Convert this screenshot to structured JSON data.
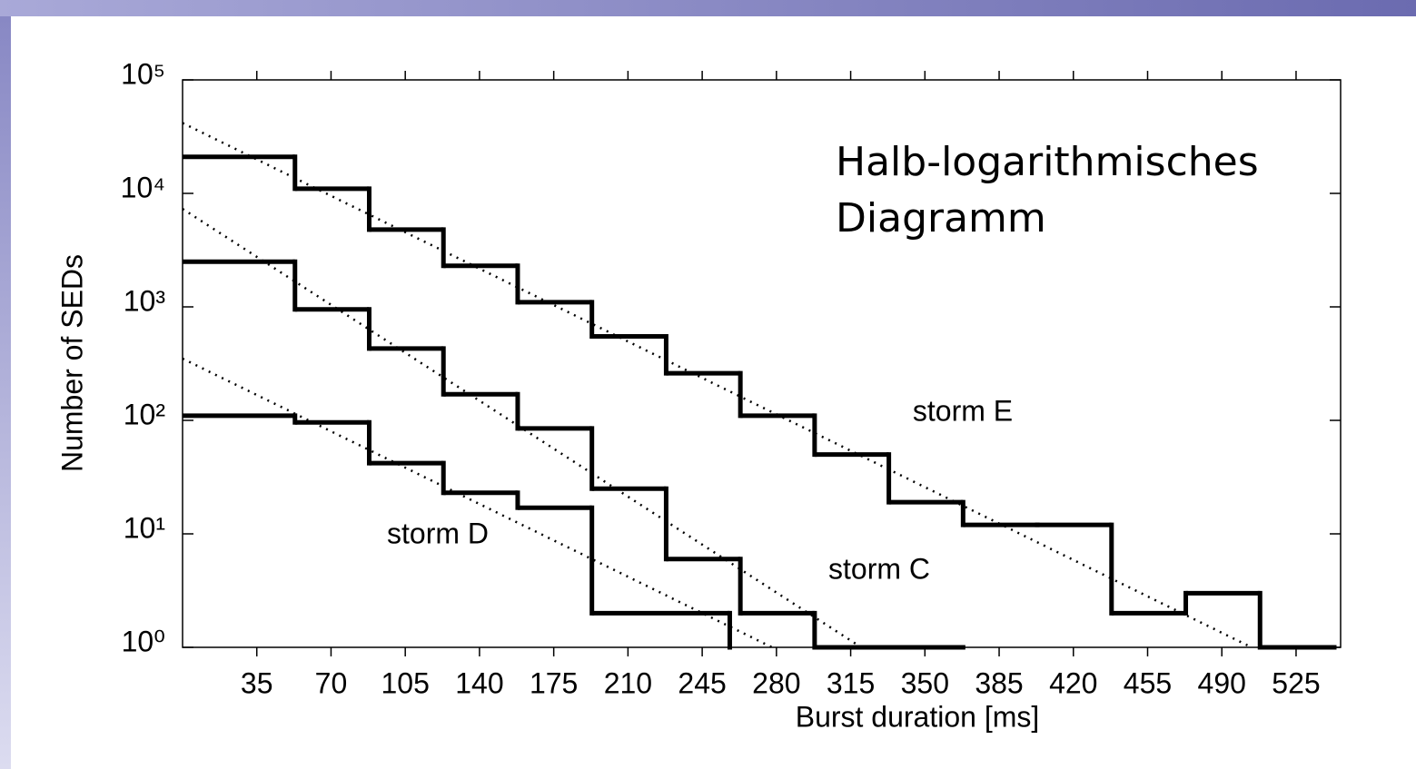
{
  "chart_data": {
    "type": "step",
    "x_label": "Burst duration [ms]",
    "y_label": "Number of SEDs",
    "annotation": "Halb-logarithmisches Diagramm",
    "xlim": [
      0,
      546
    ],
    "ylim": [
      1,
      100000
    ],
    "log_y": true,
    "xticks": [
      35,
      70,
      105,
      140,
      175,
      210,
      245,
      280,
      315,
      350,
      385,
      420,
      455,
      490,
      525
    ],
    "yticks": [
      {
        "value": 1,
        "label": "10⁰"
      },
      {
        "value": 10,
        "label": "10¹"
      },
      {
        "value": 100,
        "label": "10²"
      },
      {
        "value": 1000,
        "label": "10³"
      },
      {
        "value": 10000,
        "label": "10⁴"
      },
      {
        "value": 100000,
        "label": "10⁵"
      }
    ],
    "series": [
      {
        "name": "storm E",
        "color": "#000000",
        "bins": [
          0,
          53,
          88,
          123,
          158,
          193,
          228,
          263,
          298,
          333,
          368,
          403,
          438,
          473,
          508,
          543
        ],
        "values": [
          21000,
          11000,
          4800,
          2300,
          1100,
          550,
          260,
          110,
          50,
          19,
          12,
          12,
          2,
          3,
          1
        ],
        "fit": {
          "x": [
            0,
            504
          ],
          "y": [
            41700,
            1
          ]
        }
      },
      {
        "name": "storm C",
        "color": "#000000",
        "bins": [
          0,
          53,
          88,
          123,
          158,
          193,
          228,
          263,
          298,
          368
        ],
        "values": [
          2500,
          950,
          430,
          170,
          85,
          25,
          6,
          2,
          1
        ],
        "fit": {
          "x": [
            0,
            320
          ],
          "y": [
            7300,
            1
          ]
        }
      },
      {
        "name": "storm D",
        "color": "#000000",
        "bins": [
          0,
          53,
          88,
          123,
          158,
          193,
          258
        ],
        "values": [
          110,
          96,
          42,
          23,
          17,
          2
        ],
        "fit": {
          "x": [
            0,
            278
          ],
          "y": [
            350,
            1
          ]
        }
      }
    ]
  }
}
